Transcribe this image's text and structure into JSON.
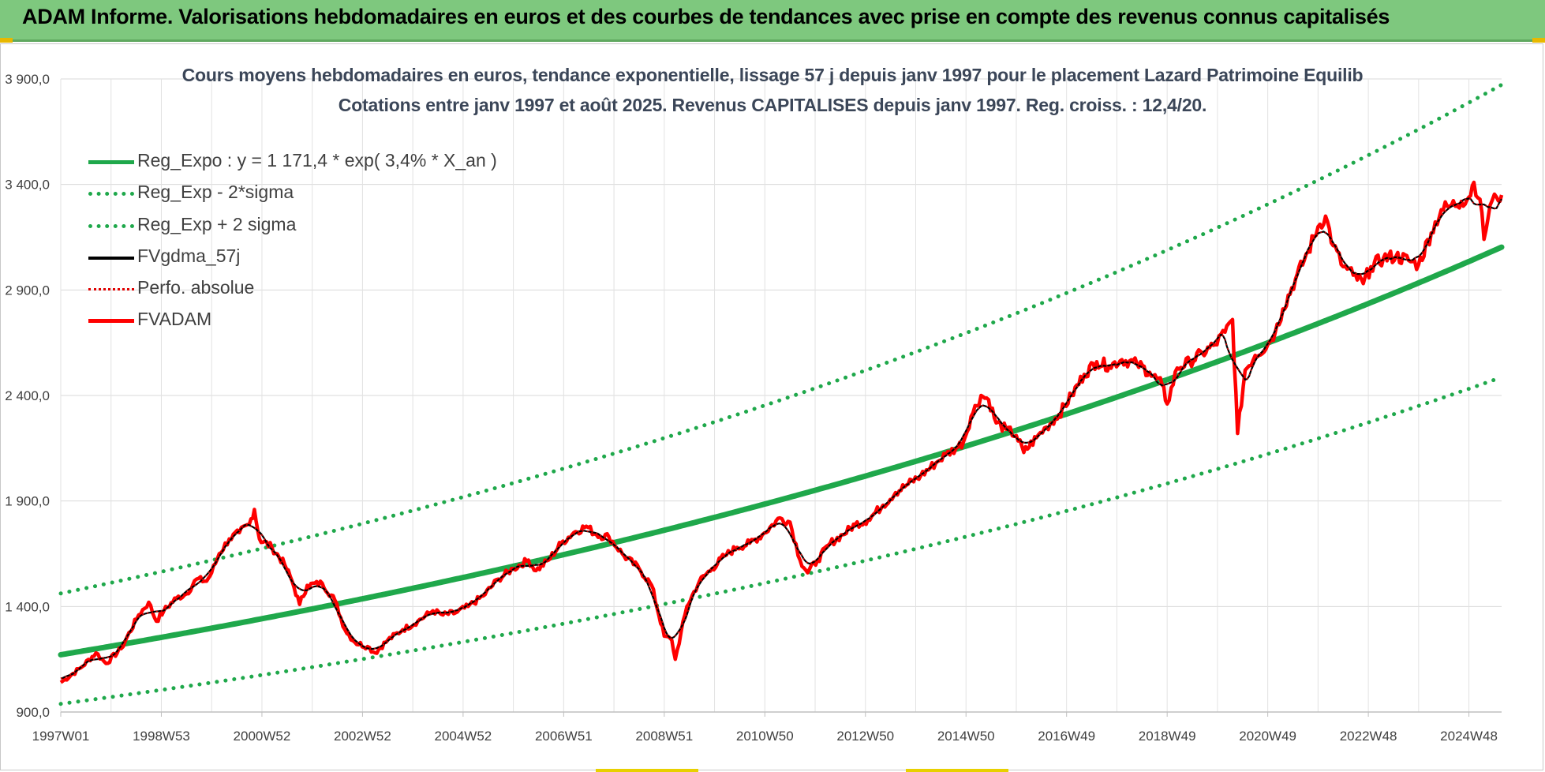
{
  "banner": {
    "title": "ADAM Informe. Valorisations hebdomadaires en euros et des courbes de tendances avec prise en compte des revenus connus capitalisés"
  },
  "chart_data": {
    "type": "line",
    "title": "Cours moyens hebdomadaires en euros, tendance exponentielle, lissage 57 j depuis janv 1997 pour le placement Lazard Patrimoine Equilib",
    "subtitle": "Cotations entre janv 1997 et août 2025.  Revenus CAPITALISES depuis janv 1997. Reg.  croiss. : 12,4/20.",
    "xlabel": "",
    "ylabel": "",
    "x_tick_labels": [
      "1997W01",
      "1998W53",
      "2000W52",
      "2002W52",
      "2004W52",
      "2006W51",
      "2008W51",
      "2010W50",
      "2012W50",
      "2014W50",
      "2016W49",
      "2018W49",
      "2020W49",
      "2022W48",
      "2024W48"
    ],
    "x_tick_years": [
      1997.0,
      1999.0,
      2001.0,
      2003.0,
      2005.0,
      2007.0,
      2009.0,
      2011.0,
      2013.0,
      2015.0,
      2017.0,
      2019.0,
      2021.0,
      2023.0,
      2025.0
    ],
    "x_range": [
      1997.0,
      2025.65
    ],
    "y_ticks": [
      900,
      1400,
      1900,
      2400,
      2900,
      3400,
      3900
    ],
    "y_tick_labels": [
      "900,0",
      "1 400,0",
      "1 900,0",
      "2 400,0",
      "2 900,0",
      "3 400,0",
      "3 900,0"
    ],
    "ylim": [
      900,
      3900
    ],
    "grid": true,
    "legend_position": "top-left",
    "regression": {
      "a": 1171.4,
      "rate": 0.034,
      "sigma_factor": 1.248
    },
    "series": [
      {
        "name": "Reg_Expo : y = 1 171,4 * exp( 3,4% *  X_an )",
        "color": "#1fa84b",
        "style": "solid"
      },
      {
        "name": "Reg_Exp - 2*sigma",
        "color": "#1fa84b",
        "style": "dotted"
      },
      {
        "name": "Reg_Exp + 2 sigma",
        "color": "#1fa84b",
        "style": "dotted"
      },
      {
        "name": "FVgdma_57j",
        "color": "#000000",
        "style": "solid"
      },
      {
        "name": "Perfo. absolue",
        "color": "#e00000",
        "style": "dotted"
      },
      {
        "name": "FVADAM",
        "color": "#ff0000",
        "style": "solid",
        "points": [
          [
            1997.0,
            1040
          ],
          [
            1997.4,
            1110
          ],
          [
            1997.7,
            1180
          ],
          [
            1997.9,
            1130
          ],
          [
            1998.2,
            1200
          ],
          [
            1998.55,
            1360
          ],
          [
            1998.75,
            1420
          ],
          [
            1998.9,
            1330
          ],
          [
            1999.05,
            1380
          ],
          [
            1999.3,
            1440
          ],
          [
            1999.5,
            1460
          ],
          [
            1999.7,
            1530
          ],
          [
            1999.9,
            1520
          ],
          [
            2000.0,
            1560
          ],
          [
            2000.15,
            1650
          ],
          [
            2000.35,
            1720
          ],
          [
            2000.55,
            1750
          ],
          [
            2000.75,
            1790
          ],
          [
            2000.85,
            1860
          ],
          [
            2000.95,
            1720
          ],
          [
            2001.2,
            1680
          ],
          [
            2001.45,
            1600
          ],
          [
            2001.6,
            1520
          ],
          [
            2001.75,
            1410
          ],
          [
            2001.9,
            1500
          ],
          [
            2002.2,
            1510
          ],
          [
            2002.45,
            1430
          ],
          [
            2002.65,
            1290
          ],
          [
            2002.85,
            1230
          ],
          [
            2003.1,
            1210
          ],
          [
            2003.25,
            1180
          ],
          [
            2003.5,
            1240
          ],
          [
            2003.8,
            1290
          ],
          [
            2004.1,
            1330
          ],
          [
            2004.4,
            1380
          ],
          [
            2004.6,
            1360
          ],
          [
            2004.85,
            1370
          ],
          [
            2005.1,
            1400
          ],
          [
            2005.4,
            1450
          ],
          [
            2005.7,
            1530
          ],
          [
            2006.0,
            1580
          ],
          [
            2006.3,
            1620
          ],
          [
            2006.45,
            1570
          ],
          [
            2006.7,
            1620
          ],
          [
            2006.95,
            1700
          ],
          [
            2007.2,
            1750
          ],
          [
            2007.45,
            1780
          ],
          [
            2007.65,
            1740
          ],
          [
            2007.9,
            1730
          ],
          [
            2008.2,
            1640
          ],
          [
            2008.5,
            1580
          ],
          [
            2008.75,
            1500
          ],
          [
            2009.0,
            1260
          ],
          [
            2009.15,
            1240
          ],
          [
            2009.22,
            1150
          ],
          [
            2009.45,
            1400
          ],
          [
            2009.7,
            1520
          ],
          [
            2009.95,
            1580
          ],
          [
            2010.2,
            1640
          ],
          [
            2010.45,
            1680
          ],
          [
            2010.7,
            1700
          ],
          [
            2010.95,
            1740
          ],
          [
            2011.3,
            1820
          ],
          [
            2011.5,
            1800
          ],
          [
            2011.7,
            1620
          ],
          [
            2011.85,
            1560
          ],
          [
            2012.05,
            1620
          ],
          [
            2012.3,
            1700
          ],
          [
            2012.55,
            1740
          ],
          [
            2012.8,
            1790
          ],
          [
            2013.05,
            1810
          ],
          [
            2013.35,
            1880
          ],
          [
            2013.6,
            1940
          ],
          [
            2013.85,
            1980
          ],
          [
            2014.1,
            2020
          ],
          [
            2014.4,
            2080
          ],
          [
            2014.6,
            2120
          ],
          [
            2014.8,
            2150
          ],
          [
            2014.95,
            2180
          ],
          [
            2015.1,
            2300
          ],
          [
            2015.3,
            2400
          ],
          [
            2015.45,
            2380
          ],
          [
            2015.6,
            2270
          ],
          [
            2015.8,
            2240
          ],
          [
            2016.0,
            2210
          ],
          [
            2016.15,
            2130
          ],
          [
            2016.4,
            2200
          ],
          [
            2016.6,
            2250
          ],
          [
            2016.85,
            2310
          ],
          [
            2017.1,
            2400
          ],
          [
            2017.35,
            2500
          ],
          [
            2017.6,
            2560
          ],
          [
            2017.85,
            2540
          ],
          [
            2018.1,
            2570
          ],
          [
            2018.4,
            2550
          ],
          [
            2018.65,
            2510
          ],
          [
            2018.9,
            2450
          ],
          [
            2019.0,
            2360
          ],
          [
            2019.2,
            2530
          ],
          [
            2019.45,
            2560
          ],
          [
            2019.7,
            2600
          ],
          [
            2019.95,
            2640
          ],
          [
            2020.15,
            2700
          ],
          [
            2020.3,
            2760
          ],
          [
            2020.4,
            2220
          ],
          [
            2020.55,
            2520
          ],
          [
            2020.75,
            2590
          ],
          [
            2021.0,
            2640
          ],
          [
            2021.15,
            2700
          ],
          [
            2021.3,
            2810
          ],
          [
            2021.55,
            2950
          ],
          [
            2021.8,
            3080
          ],
          [
            2022.0,
            3200
          ],
          [
            2022.15,
            3250
          ],
          [
            2022.3,
            3110
          ],
          [
            2022.5,
            3010
          ],
          [
            2022.7,
            2970
          ],
          [
            2022.9,
            2930
          ],
          [
            2023.05,
            3010
          ],
          [
            2023.3,
            3050
          ],
          [
            2023.55,
            3060
          ],
          [
            2023.8,
            3040
          ],
          [
            2024.0,
            3020
          ],
          [
            2024.25,
            3170
          ],
          [
            2024.45,
            3280
          ],
          [
            2024.65,
            3300
          ],
          [
            2024.85,
            3320
          ],
          [
            2025.0,
            3340
          ],
          [
            2025.1,
            3410
          ],
          [
            2025.22,
            3330
          ],
          [
            2025.3,
            3140
          ],
          [
            2025.42,
            3300
          ],
          [
            2025.55,
            3340
          ],
          [
            2025.65,
            3350
          ]
        ]
      }
    ]
  }
}
